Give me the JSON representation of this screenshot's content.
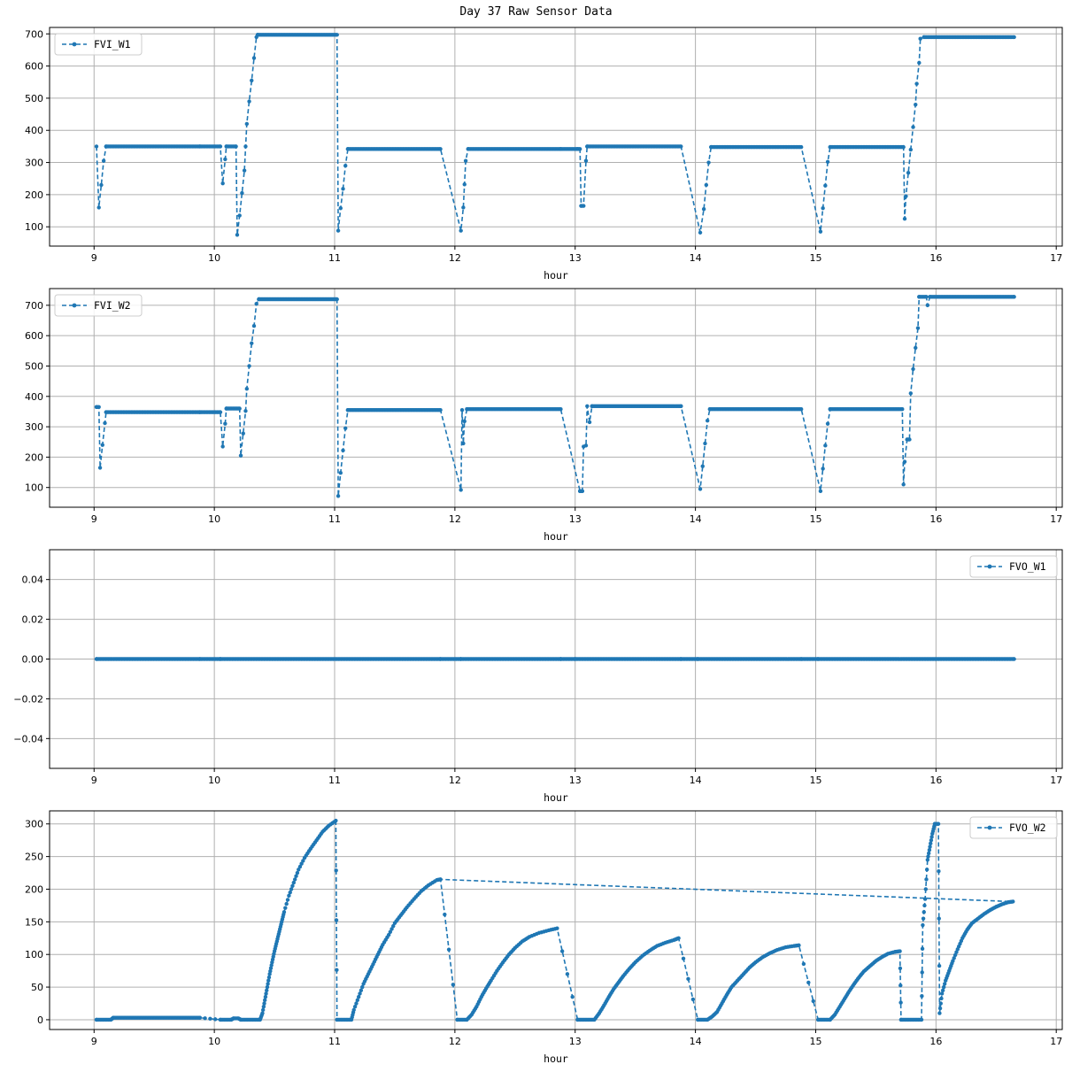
{
  "figure": {
    "title": "Day 37 Raw Sensor Data"
  },
  "colors": {
    "series": "#1f77b4",
    "grid": "#b0b0b0",
    "axis": "#000000"
  },
  "chart_data": [
    {
      "type": "line",
      "series": [
        {
          "name": "FVI_W1",
          "style": "dashed-with-point-markers"
        }
      ],
      "xlabel": "hour",
      "xlim": [
        8.63,
        17.05
      ],
      "ylim": [
        40,
        720
      ],
      "xticks": [
        9,
        10,
        11,
        12,
        13,
        14,
        15,
        16,
        17
      ],
      "yticks": [
        100,
        200,
        300,
        400,
        500,
        600,
        700
      ],
      "legend": "upper-left",
      "grid": true,
      "points": [
        [
          9.02,
          350
        ],
        [
          9.04,
          160
        ],
        [
          9.06,
          230
        ],
        [
          9.08,
          305
        ],
        [
          9.1,
          350
        ],
        [
          9.88,
          350
        ],
        [
          10.05,
          350
        ],
        [
          10.07,
          235
        ],
        [
          10.09,
          310
        ],
        [
          10.1,
          350
        ],
        [
          10.18,
          350
        ],
        [
          10.19,
          75
        ],
        [
          10.21,
          135
        ],
        [
          10.23,
          205
        ],
        [
          10.25,
          275
        ],
        [
          10.26,
          350
        ],
        [
          10.27,
          420
        ],
        [
          10.29,
          490
        ],
        [
          10.31,
          555
        ],
        [
          10.33,
          625
        ],
        [
          10.35,
          690
        ],
        [
          10.36,
          697
        ],
        [
          11.02,
          697
        ],
        [
          11.03,
          88
        ],
        [
          11.05,
          158
        ],
        [
          11.07,
          218
        ],
        [
          11.09,
          290
        ],
        [
          11.11,
          342
        ],
        [
          11.88,
          342
        ],
        [
          12.05,
          88
        ],
        [
          12.07,
          160
        ],
        [
          12.08,
          232
        ],
        [
          12.09,
          305
        ],
        [
          12.11,
          342
        ],
        [
          12.88,
          342
        ],
        [
          13.02,
          342
        ],
        [
          13.04,
          342
        ],
        [
          13.05,
          165
        ],
        [
          13.07,
          165
        ],
        [
          13.09,
          305
        ],
        [
          13.1,
          350
        ],
        [
          13.88,
          350
        ],
        [
          14.04,
          82
        ],
        [
          14.07,
          155
        ],
        [
          14.09,
          230
        ],
        [
          14.11,
          300
        ],
        [
          14.13,
          348
        ],
        [
          14.88,
          348
        ],
        [
          15.04,
          85
        ],
        [
          15.06,
          158
        ],
        [
          15.08,
          228
        ],
        [
          15.1,
          302
        ],
        [
          15.12,
          348
        ],
        [
          15.73,
          348
        ],
        [
          15.74,
          125
        ],
        [
          15.75,
          195
        ],
        [
          15.77,
          268
        ],
        [
          15.79,
          340
        ],
        [
          15.81,
          410
        ],
        [
          15.83,
          480
        ],
        [
          15.84,
          545
        ],
        [
          15.86,
          610
        ],
        [
          15.87,
          685
        ],
        [
          15.9,
          690
        ],
        [
          16.65,
          690
        ]
      ]
    },
    {
      "type": "line",
      "series": [
        {
          "name": "FVI_W2",
          "style": "dashed-with-point-markers"
        }
      ],
      "xlabel": "hour",
      "xlim": [
        8.63,
        17.05
      ],
      "ylim": [
        35,
        755
      ],
      "xticks": [
        9,
        10,
        11,
        12,
        13,
        14,
        15,
        16,
        17
      ],
      "yticks": [
        100,
        200,
        300,
        400,
        500,
        600,
        700
      ],
      "legend": "upper-left",
      "grid": true,
      "points": [
        [
          9.02,
          365
        ],
        [
          9.04,
          365
        ],
        [
          9.05,
          165
        ],
        [
          9.07,
          240
        ],
        [
          9.09,
          312
        ],
        [
          9.1,
          348
        ],
        [
          9.88,
          348
        ],
        [
          10.05,
          348
        ],
        [
          10.07,
          235
        ],
        [
          10.09,
          310
        ],
        [
          10.1,
          360
        ],
        [
          10.21,
          360
        ],
        [
          10.22,
          205
        ],
        [
          10.24,
          278
        ],
        [
          10.26,
          352
        ],
        [
          10.27,
          425
        ],
        [
          10.29,
          500
        ],
        [
          10.31,
          575
        ],
        [
          10.33,
          632
        ],
        [
          10.35,
          705
        ],
        [
          10.37,
          720
        ],
        [
          11.02,
          720
        ],
        [
          11.03,
          72
        ],
        [
          11.05,
          148
        ],
        [
          11.07,
          222
        ],
        [
          11.09,
          295
        ],
        [
          11.11,
          355
        ],
        [
          11.88,
          355
        ],
        [
          12.05,
          92
        ],
        [
          12.06,
          355
        ],
        [
          12.07,
          245
        ],
        [
          12.08,
          318
        ],
        [
          12.1,
          358
        ],
        [
          12.88,
          358
        ],
        [
          13.04,
          88
        ],
        [
          13.06,
          88
        ],
        [
          13.07,
          235
        ],
        [
          13.09,
          238
        ],
        [
          13.1,
          368
        ],
        [
          13.12,
          315
        ],
        [
          13.14,
          368
        ],
        [
          13.88,
          368
        ],
        [
          14.04,
          95
        ],
        [
          14.06,
          170
        ],
        [
          14.08,
          245
        ],
        [
          14.1,
          320
        ],
        [
          14.12,
          358
        ],
        [
          14.88,
          358
        ],
        [
          15.04,
          88
        ],
        [
          15.06,
          162
        ],
        [
          15.08,
          238
        ],
        [
          15.1,
          310
        ],
        [
          15.12,
          358
        ],
        [
          15.72,
          358
        ],
        [
          15.73,
          110
        ],
        [
          15.74,
          185
        ],
        [
          15.76,
          258
        ],
        [
          15.78,
          258
        ],
        [
          15.79,
          410
        ],
        [
          15.81,
          490
        ],
        [
          15.83,
          560
        ],
        [
          15.85,
          625
        ],
        [
          15.86,
          728
        ],
        [
          15.92,
          728
        ],
        [
          15.93,
          700
        ],
        [
          15.95,
          728
        ],
        [
          16.65,
          728
        ]
      ]
    },
    {
      "type": "line",
      "series": [
        {
          "name": "FVO_W1",
          "style": "dashed-with-point-markers"
        }
      ],
      "xlabel": "hour",
      "xlim": [
        8.63,
        17.05
      ],
      "ylim": [
        -0.055,
        0.055
      ],
      "xticks": [
        9,
        10,
        11,
        12,
        13,
        14,
        15,
        16,
        17
      ],
      "yticks": [
        -0.04,
        -0.02,
        0.0,
        0.02,
        0.04
      ],
      "ytick_labels": [
        "−0.04",
        "−0.02",
        "0.00",
        "0.02",
        "0.04"
      ],
      "legend": "upper-right",
      "grid": true,
      "points": [
        [
          9.02,
          0
        ],
        [
          9.88,
          0
        ],
        [
          10.05,
          0
        ],
        [
          11.88,
          0
        ],
        [
          12.05,
          0
        ],
        [
          12.88,
          0
        ],
        [
          13.0,
          0
        ],
        [
          13.88,
          0
        ],
        [
          14.02,
          0
        ],
        [
          14.88,
          0
        ],
        [
          15.02,
          0
        ],
        [
          16.65,
          0
        ]
      ]
    },
    {
      "type": "line",
      "series": [
        {
          "name": "FVO_W2",
          "style": "dashed-with-point-markers"
        }
      ],
      "xlabel": "hour",
      "xlim": [
        8.63,
        17.05
      ],
      "ylim": [
        -15,
        320
      ],
      "xticks": [
        9,
        10,
        11,
        12,
        13,
        14,
        15,
        16,
        17
      ],
      "yticks": [
        0,
        50,
        100,
        150,
        200,
        250,
        300
      ],
      "legend": "upper-right",
      "grid": true,
      "points": [
        [
          9.02,
          0
        ],
        [
          9.14,
          0
        ],
        [
          9.16,
          3
        ],
        [
          9.88,
          3
        ],
        [
          10.05,
          0
        ],
        [
          10.14,
          0
        ],
        [
          10.16,
          2
        ],
        [
          10.2,
          2
        ],
        [
          10.22,
          0
        ],
        [
          10.38,
          0
        ],
        [
          10.4,
          10
        ],
        [
          10.42,
          30
        ],
        [
          10.44,
          50
        ],
        [
          10.46,
          70
        ],
        [
          10.48,
          88
        ],
        [
          10.5,
          105
        ],
        [
          10.52,
          120
        ],
        [
          10.54,
          135
        ],
        [
          10.56,
          150
        ],
        [
          10.58,
          165
        ],
        [
          10.62,
          190
        ],
        [
          10.66,
          210
        ],
        [
          10.7,
          230
        ],
        [
          10.75,
          248
        ],
        [
          10.8,
          262
        ],
        [
          10.85,
          275
        ],
        [
          10.9,
          288
        ],
        [
          10.95,
          297
        ],
        [
          11.01,
          305
        ],
        [
          11.02,
          0
        ],
        [
          11.14,
          0
        ],
        [
          11.16,
          15
        ],
        [
          11.2,
          35
        ],
        [
          11.24,
          55
        ],
        [
          11.28,
          70
        ],
        [
          11.32,
          85
        ],
        [
          11.36,
          100
        ],
        [
          11.4,
          115
        ],
        [
          11.45,
          130
        ],
        [
          11.5,
          148
        ],
        [
          11.55,
          160
        ],
        [
          11.6,
          172
        ],
        [
          11.66,
          185
        ],
        [
          11.72,
          197
        ],
        [
          11.78,
          206
        ],
        [
          11.85,
          214
        ],
        [
          11.88,
          215
        ],
        [
          12.02,
          0
        ],
        [
          12.1,
          0
        ],
        [
          12.14,
          8
        ],
        [
          12.18,
          20
        ],
        [
          12.22,
          35
        ],
        [
          12.26,
          48
        ],
        [
          12.3,
          60
        ],
        [
          12.35,
          75
        ],
        [
          12.4,
          88
        ],
        [
          12.45,
          100
        ],
        [
          12.5,
          110
        ],
        [
          12.56,
          120
        ],
        [
          12.62,
          127
        ],
        [
          12.7,
          133
        ],
        [
          12.78,
          137
        ],
        [
          12.85,
          140
        ],
        [
          13.02,
          0
        ],
        [
          13.16,
          0
        ],
        [
          13.2,
          10
        ],
        [
          13.24,
          22
        ],
        [
          13.28,
          35
        ],
        [
          13.32,
          47
        ],
        [
          13.36,
          57
        ],
        [
          13.4,
          67
        ],
        [
          13.45,
          78
        ],
        [
          13.5,
          88
        ],
        [
          13.56,
          98
        ],
        [
          13.62,
          106
        ],
        [
          13.68,
          113
        ],
        [
          13.75,
          118
        ],
        [
          13.82,
          122
        ],
        [
          13.86,
          125
        ],
        [
          14.02,
          0
        ],
        [
          14.1,
          0
        ],
        [
          14.14,
          5
        ],
        [
          14.18,
          12
        ],
        [
          14.22,
          25
        ],
        [
          14.26,
          38
        ],
        [
          14.3,
          50
        ],
        [
          14.35,
          60
        ],
        [
          14.4,
          70
        ],
        [
          14.45,
          80
        ],
        [
          14.5,
          88
        ],
        [
          14.56,
          96
        ],
        [
          14.62,
          102
        ],
        [
          14.68,
          107
        ],
        [
          14.75,
          111
        ],
        [
          14.82,
          113
        ],
        [
          14.86,
          114
        ],
        [
          15.02,
          0
        ],
        [
          15.12,
          0
        ],
        [
          15.16,
          8
        ],
        [
          15.2,
          20
        ],
        [
          15.24,
          32
        ],
        [
          15.28,
          44
        ],
        [
          15.32,
          55
        ],
        [
          15.36,
          65
        ],
        [
          15.4,
          74
        ],
        [
          15.45,
          82
        ],
        [
          15.5,
          90
        ],
        [
          15.55,
          96
        ],
        [
          15.6,
          101
        ],
        [
          15.66,
          104
        ],
        [
          15.7,
          105
        ],
        [
          15.71,
          0
        ],
        [
          15.88,
          0
        ],
        [
          15.89,
          145
        ],
        [
          15.91,
          185
        ],
        [
          15.93,
          245
        ],
        [
          15.95,
          265
        ],
        [
          15.97,
          285
        ],
        [
          15.99,
          300
        ],
        [
          16.02,
          300
        ],
        [
          16.03,
          10
        ],
        [
          16.05,
          40
        ],
        [
          16.08,
          60
        ],
        [
          16.11,
          75
        ],
        [
          16.14,
          90
        ],
        [
          16.18,
          108
        ],
        [
          16.22,
          125
        ],
        [
          16.26,
          138
        ],
        [
          16.3,
          148
        ],
        [
          16.35,
          155
        ],
        [
          16.4,
          162
        ],
        [
          16.45,
          168
        ],
        [
          16.5,
          173
        ],
        [
          16.55,
          177
        ],
        [
          16.6,
          180
        ],
        [
          16.64,
          181
        ],
        [
          11.88,
          215
        ]
      ]
    }
  ]
}
